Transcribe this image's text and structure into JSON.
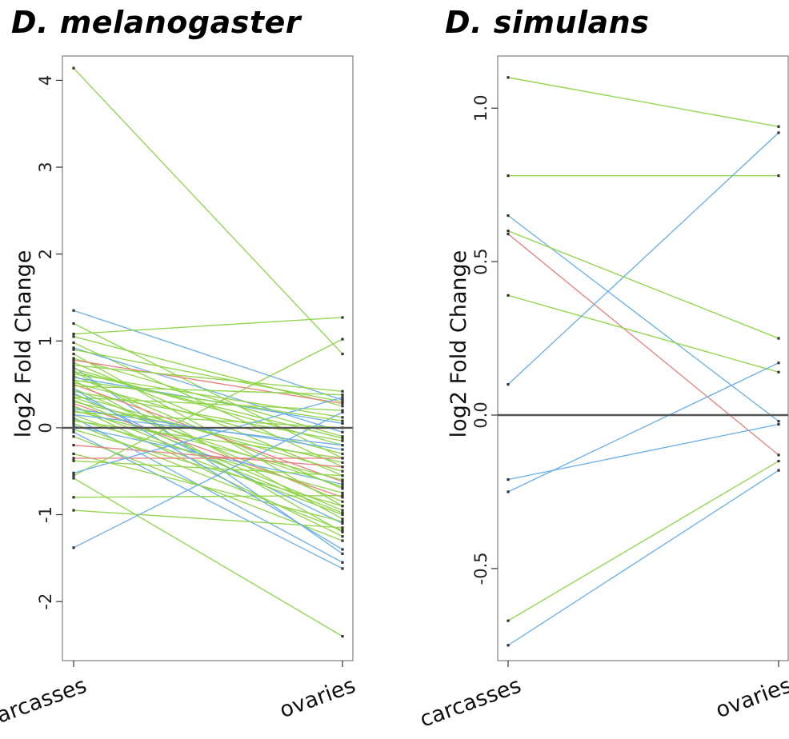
{
  "chart_data": [
    {
      "type": "line",
      "title": "D. melanogaster",
      "ylabel": "log2 Fold Change",
      "categories": [
        "carcasses",
        "ovaries"
      ],
      "ylim": [
        -2.68,
        4.28
      ],
      "yticks": [
        -2,
        -1,
        0,
        1,
        2,
        3,
        4
      ],
      "yticklabels": [
        "-2",
        "-1",
        "0",
        "1",
        "2",
        "3",
        "4"
      ],
      "reference_line": 0,
      "colors": {
        "green": "#8fd44a",
        "blue": "#6aaee8",
        "red": "#e88080",
        "point": "#333333",
        "frame": "#888888"
      },
      "series": [
        {
          "color": "green",
          "values": [
            4.14,
            0.85
          ]
        },
        {
          "color": "blue",
          "values": [
            1.35,
            0.32
          ]
        },
        {
          "color": "green",
          "values": [
            1.2,
            -0.35
          ]
        },
        {
          "color": "green",
          "values": [
            1.08,
            1.27
          ]
        },
        {
          "color": "green",
          "values": [
            1.05,
            0.25
          ]
        },
        {
          "color": "green",
          "values": [
            0.98,
            -0.45
          ]
        },
        {
          "color": "blue",
          "values": [
            0.92,
            -0.05
          ]
        },
        {
          "color": "green",
          "values": [
            0.9,
            0.3
          ]
        },
        {
          "color": "green",
          "values": [
            0.85,
            -0.9
          ]
        },
        {
          "color": "green",
          "values": [
            0.8,
            -0.1
          ]
        },
        {
          "color": "red",
          "values": [
            0.78,
            0.28
          ]
        },
        {
          "color": "green",
          "values": [
            0.75,
            -0.55
          ]
        },
        {
          "color": "green",
          "values": [
            0.72,
            0.42
          ]
        },
        {
          "color": "blue",
          "values": [
            0.7,
            -1.45
          ]
        },
        {
          "color": "green",
          "values": [
            0.68,
            -0.2
          ]
        },
        {
          "color": "green",
          "values": [
            0.65,
            -1.05
          ]
        },
        {
          "color": "green",
          "values": [
            0.62,
            0.12
          ]
        },
        {
          "color": "green",
          "values": [
            0.6,
            -0.7
          ]
        },
        {
          "color": "blue",
          "values": [
            0.58,
            0.05
          ]
        },
        {
          "color": "green",
          "values": [
            0.55,
            -1.2
          ]
        },
        {
          "color": "green",
          "values": [
            0.52,
            -0.3
          ]
        },
        {
          "color": "red",
          "values": [
            0.5,
            -0.62
          ]
        },
        {
          "color": "green",
          "values": [
            0.48,
            0.38
          ]
        },
        {
          "color": "green",
          "values": [
            0.45,
            -0.85
          ]
        },
        {
          "color": "green",
          "values": [
            0.42,
            -0.15
          ]
        },
        {
          "color": "blue",
          "values": [
            0.4,
            -1.1
          ]
        },
        {
          "color": "green",
          "values": [
            0.38,
            -0.5
          ]
        },
        {
          "color": "green",
          "values": [
            0.35,
            0.2
          ]
        },
        {
          "color": "green",
          "values": [
            0.32,
            -0.95
          ]
        },
        {
          "color": "green",
          "values": [
            0.3,
            -0.4
          ]
        },
        {
          "color": "red",
          "values": [
            0.28,
            -0.8
          ]
        },
        {
          "color": "green",
          "values": [
            0.25,
            -1.25
          ]
        },
        {
          "color": "blue",
          "values": [
            0.22,
            -0.25
          ]
        },
        {
          "color": "green",
          "values": [
            0.2,
            -0.6
          ]
        },
        {
          "color": "green",
          "values": [
            0.18,
            0.0
          ]
        },
        {
          "color": "green",
          "values": [
            0.15,
            -1.0
          ]
        },
        {
          "color": "blue",
          "values": [
            0.12,
            -1.55
          ]
        },
        {
          "color": "green",
          "values": [
            0.1,
            -0.75
          ]
        },
        {
          "color": "green",
          "values": [
            0.08,
            -0.35
          ]
        },
        {
          "color": "green",
          "values": [
            0.05,
            -1.18
          ]
        },
        {
          "color": "blue",
          "values": [
            0.02,
            -0.65
          ]
        },
        {
          "color": "green",
          "values": [
            -0.02,
            -0.9
          ]
        },
        {
          "color": "blue",
          "values": [
            -0.05,
            -1.62
          ]
        },
        {
          "color": "green",
          "values": [
            -0.1,
            -1.3
          ]
        },
        {
          "color": "red",
          "values": [
            -0.2,
            -0.45
          ]
        },
        {
          "color": "green",
          "values": [
            -0.3,
            -1.08
          ]
        },
        {
          "color": "red",
          "values": [
            -0.35,
            -0.35
          ]
        },
        {
          "color": "green",
          "values": [
            -0.38,
            -0.55
          ]
        },
        {
          "color": "green",
          "values": [
            -0.55,
            1.02
          ]
        },
        {
          "color": "blue",
          "values": [
            -0.52,
            0.35
          ]
        },
        {
          "color": "green",
          "values": [
            -0.58,
            -2.4
          ]
        },
        {
          "color": "green",
          "values": [
            -0.8,
            -0.78
          ]
        },
        {
          "color": "green",
          "values": [
            -0.95,
            -1.15
          ]
        },
        {
          "color": "blue",
          "values": [
            -1.38,
            0.18
          ]
        },
        {
          "color": "green",
          "values": [
            0.65,
            -0.12
          ]
        },
        {
          "color": "green",
          "values": [
            0.35,
            -0.68
          ]
        },
        {
          "color": "blue",
          "values": [
            0.45,
            -1.4
          ]
        },
        {
          "color": "green",
          "values": [
            0.55,
            0.08
          ]
        },
        {
          "color": "green",
          "values": [
            0.25,
            -0.98
          ]
        },
        {
          "color": "blue",
          "values": [
            0.15,
            -0.2
          ]
        }
      ]
    },
    {
      "type": "line",
      "title": "D. simulans",
      "ylabel": "log2 Fold Change",
      "categories": [
        "carcasses",
        "ovaries"
      ],
      "ylim": [
        -0.8,
        1.17
      ],
      "yticks": [
        -0.5,
        0.0,
        0.5,
        1.0
      ],
      "yticklabels": [
        "-0.5",
        "0.0",
        "0.5",
        "1.0"
      ],
      "reference_line": 0,
      "colors": {
        "green": "#8fd44a",
        "blue": "#6aaee8",
        "red": "#e88080",
        "point": "#333333",
        "frame": "#888888"
      },
      "series": [
        {
          "color": "green",
          "values": [
            1.1,
            0.94
          ]
        },
        {
          "color": "green",
          "values": [
            0.78,
            0.78
          ]
        },
        {
          "color": "blue",
          "values": [
            0.65,
            -0.02
          ]
        },
        {
          "color": "green",
          "values": [
            0.6,
            0.25
          ]
        },
        {
          "color": "red",
          "values": [
            0.59,
            -0.13
          ]
        },
        {
          "color": "green",
          "values": [
            0.39,
            0.14
          ]
        },
        {
          "color": "blue",
          "values": [
            0.1,
            0.92
          ]
        },
        {
          "color": "blue",
          "values": [
            -0.21,
            -0.03
          ]
        },
        {
          "color": "blue",
          "values": [
            -0.25,
            0.17
          ]
        },
        {
          "color": "green",
          "values": [
            -0.67,
            -0.15
          ]
        },
        {
          "color": "blue",
          "values": [
            -0.75,
            -0.18
          ]
        }
      ]
    }
  ]
}
